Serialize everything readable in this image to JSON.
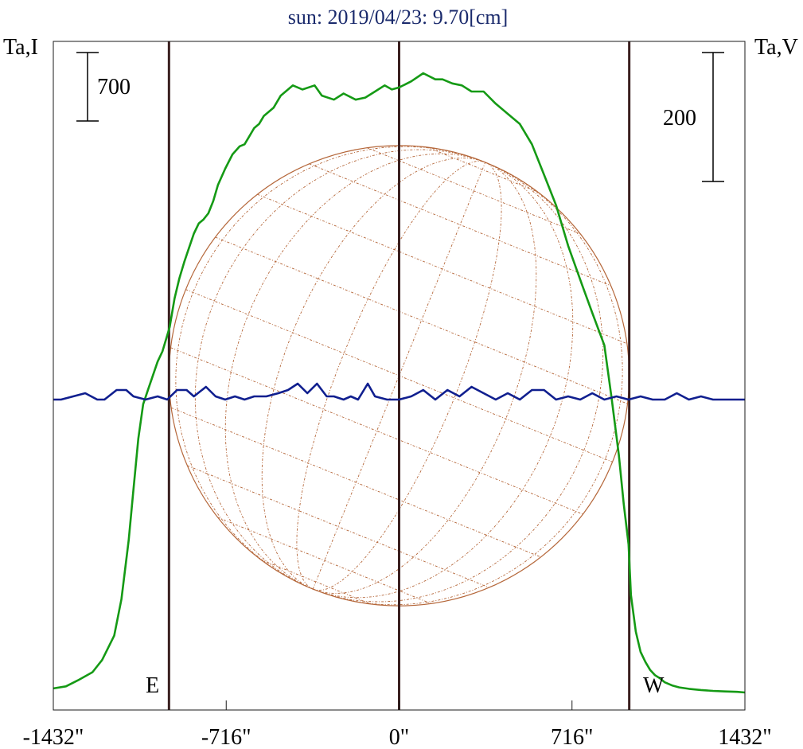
{
  "title": "sun: 2019/04/23: 9.70[cm]",
  "left_axis_label": "Ta,I",
  "right_axis_label": "Ta,V",
  "scale_bars": [
    {
      "label": "700",
      "side": "left"
    },
    {
      "label": "200",
      "side": "right"
    }
  ],
  "limb_labels": {
    "east": "E",
    "west": "W"
  },
  "colors": {
    "frame": "#1a1a1a",
    "stokes_i": "#159a15",
    "stokes_v": "#101f8f",
    "limb_lines": "#3a1f1f",
    "disk": "#b5673a",
    "title": "#1a2a6c"
  },
  "chart_data": {
    "type": "line",
    "xlabel": "",
    "x_ticks": [
      {
        "label": "-1432\"",
        "value": -1432
      },
      {
        "label": "-716\"",
        "value": -716
      },
      {
        "label": "0\"",
        "value": 0
      },
      {
        "label": "716\"",
        "value": 716
      },
      {
        "label": "1432\"",
        "value": 1432
      }
    ],
    "xlim": [
      -1432,
      1432
    ],
    "vertical_lines": [
      -953,
      0,
      953
    ],
    "solar_radius_arcsec": 953,
    "series": [
      {
        "name": "I",
        "axis": "left",
        "ylim": [
          0,
          3000
        ],
        "x": [
          -1432,
          -1380,
          -1330,
          -1270,
          -1230,
          -1180,
          -1150,
          -1120,
          -1100,
          -1080,
          -1060,
          -1040,
          -1020,
          -1000,
          -980,
          -960,
          -950,
          -930,
          -910,
          -890,
          -870,
          -850,
          -830,
          -810,
          -790,
          -770,
          -750,
          -720,
          -690,
          -660,
          -640,
          -620,
          -600,
          -580,
          -560,
          -520,
          -490,
          -440,
          -400,
          -350,
          -320,
          -270,
          -230,
          -180,
          -140,
          -100,
          -60,
          -30,
          0,
          50,
          100,
          150,
          180,
          220,
          260,
          300,
          350,
          400,
          450,
          500,
          550,
          600,
          650,
          700,
          760,
          800,
          850,
          880,
          910,
          930,
          950,
          960,
          980,
          1000,
          1020,
          1040,
          1060,
          1080,
          1100,
          1130,
          1160,
          1200,
          1250,
          1300,
          1350,
          1400,
          1432
        ],
        "y": [
          20,
          30,
          60,
          100,
          160,
          280,
          460,
          750,
          1000,
          1250,
          1420,
          1490,
          1560,
          1630,
          1680,
          1760,
          1800,
          1940,
          2040,
          2120,
          2190,
          2260,
          2310,
          2330,
          2360,
          2420,
          2500,
          2580,
          2650,
          2690,
          2700,
          2740,
          2780,
          2800,
          2840,
          2880,
          2940,
          2990,
          2970,
          2990,
          2940,
          2920,
          2950,
          2920,
          2930,
          2960,
          2990,
          2970,
          2980,
          3010,
          3050,
          3020,
          3020,
          3000,
          2990,
          2960,
          2960,
          2900,
          2850,
          2800,
          2700,
          2550,
          2400,
          2200,
          2000,
          1870,
          1710,
          1450,
          1170,
          930,
          730,
          480,
          300,
          200,
          150,
          110,
          85,
          70,
          50,
          35,
          25,
          18,
          12,
          8,
          5,
          3,
          0
        ],
        "scale_bar_value": 700
      },
      {
        "name": "V",
        "axis": "right",
        "ylim": [
          -1000,
          1000
        ],
        "x": [
          -1432,
          -1400,
          -1350,
          -1300,
          -1250,
          -1220,
          -1170,
          -1130,
          -1100,
          -1050,
          -1000,
          -960,
          -920,
          -880,
          -850,
          -800,
          -760,
          -720,
          -680,
          -640,
          -600,
          -550,
          -500,
          -460,
          -420,
          -380,
          -340,
          -300,
          -270,
          -230,
          -200,
          -170,
          -130,
          -100,
          -50,
          0,
          50,
          100,
          150,
          200,
          250,
          300,
          350,
          400,
          450,
          500,
          550,
          600,
          650,
          700,
          750,
          800,
          850,
          900,
          950,
          1000,
          1050,
          1100,
          1150,
          1200,
          1250,
          1300,
          1350,
          1400,
          1432
        ],
        "y": [
          0,
          0,
          5,
          10,
          0,
          0,
          15,
          15,
          5,
          0,
          5,
          0,
          15,
          15,
          5,
          20,
          5,
          0,
          5,
          0,
          5,
          5,
          10,
          15,
          25,
          10,
          25,
          5,
          5,
          0,
          5,
          0,
          25,
          5,
          0,
          0,
          5,
          15,
          0,
          15,
          5,
          20,
          10,
          0,
          10,
          0,
          15,
          15,
          0,
          5,
          0,
          10,
          0,
          5,
          0,
          5,
          0,
          0,
          10,
          0,
          5,
          0,
          0,
          0,
          0
        ],
        "scale_bar_value": 200
      }
    ],
    "disk_overlay": {
      "grid": true
    }
  }
}
